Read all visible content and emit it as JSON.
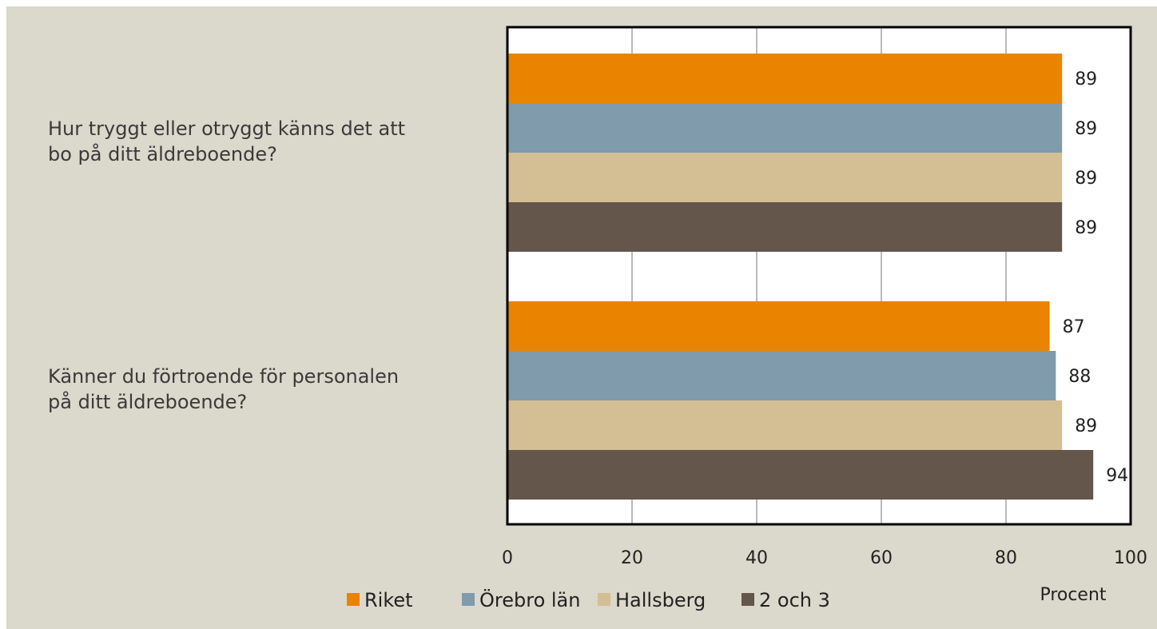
{
  "colors": {
    "background": "#dbd8cc",
    "plot_area": "#ffffff",
    "gridline": "#8c8c8c",
    "frame": "#000000"
  },
  "chart_data": {
    "type": "bar",
    "orientation": "horizontal",
    "categories": [
      [
        "Hur tryggt eller otryggt känns det att",
        "bo på ditt äldreboende?"
      ],
      [
        "Känner du förtroende för personalen",
        "på ditt äldreboende?"
      ]
    ],
    "series": [
      {
        "name": "Riket",
        "color": "#e98300",
        "values": [
          89,
          87
        ]
      },
      {
        "name": "Örebro län",
        "color": "#7f9bac",
        "values": [
          89,
          88
        ]
      },
      {
        "name": "Hallsberg",
        "color": "#d4be94",
        "values": [
          89,
          89
        ]
      },
      {
        "name": "2 och 3",
        "color": "#64564b",
        "values": [
          89,
          94
        ]
      }
    ],
    "xlim": [
      0,
      100
    ],
    "xticks": [
      "0",
      "20",
      "40",
      "60",
      "80",
      "100"
    ],
    "xlabel": "Procent",
    "grid": true,
    "legend": "bottom"
  }
}
